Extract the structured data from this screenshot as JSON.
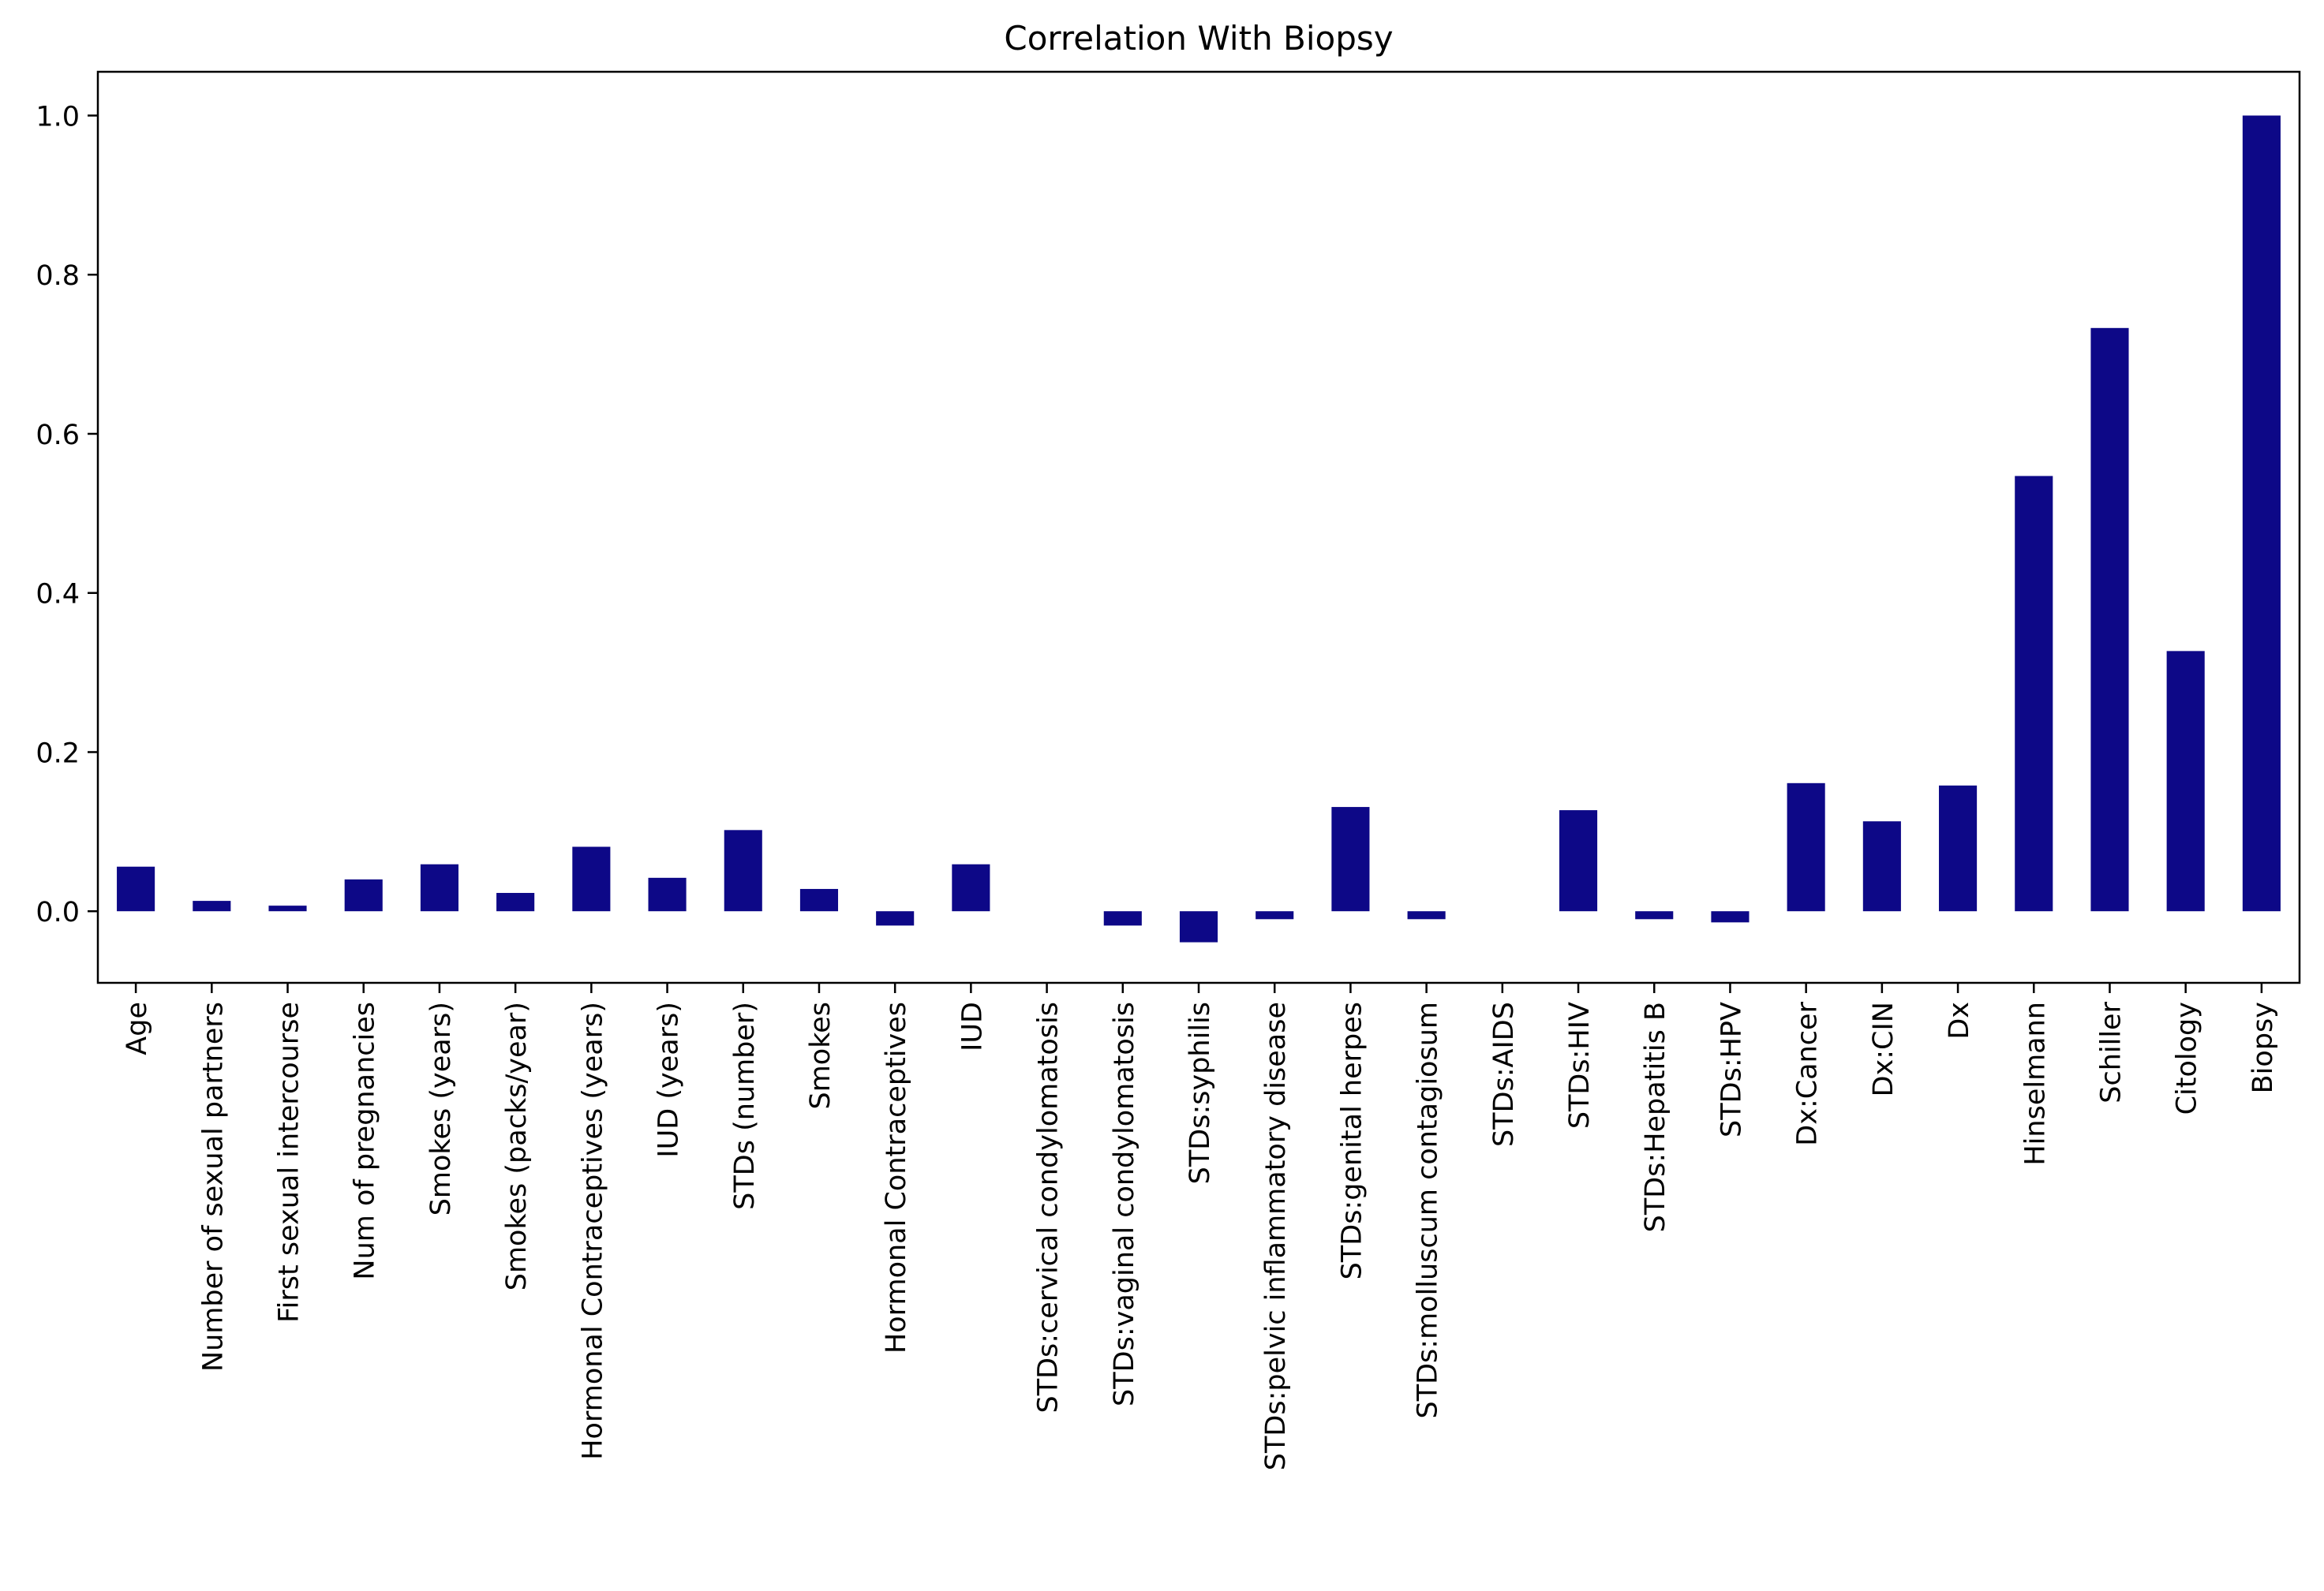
{
  "chart_data": {
    "type": "bar",
    "title": "Correlation With Biopsy",
    "xlabel": "",
    "ylabel": "",
    "ylim": [
      -0.09,
      1.055
    ],
    "yticks": [
      0.0,
      0.2,
      0.4,
      0.6,
      0.8,
      1.0
    ],
    "ytick_labels": [
      "0.0",
      "0.2",
      "0.4",
      "0.6",
      "0.8",
      "1.0"
    ],
    "bar_color": "#0d0887",
    "grid": false,
    "legend": "none",
    "categories": [
      "Age",
      "Number of sexual partners",
      "First sexual intercourse",
      "Num of pregnancies",
      "Smokes (years)",
      "Smokes (packs/year)",
      "Hormonal Contraceptives (years)",
      "IUD (years)",
      "STDs (number)",
      "Smokes",
      "Hormonal Contraceptives",
      "IUD",
      "STDs:cervical condylomatosis",
      "STDs:vaginal condylomatosis",
      "STDs:syphilis",
      "STDs:pelvic inflammatory disease",
      "STDs:genital herpes",
      "STDs:molluscum contagiosum",
      "STDs:AIDS",
      "STDs:HIV",
      "STDs:Hepatitis B",
      "STDs:HPV",
      "Dx:Cancer",
      "Dx:CIN",
      "Dx",
      "Hinselmann",
      "Schiller",
      "Citology",
      "Biopsy"
    ],
    "values": [
      0.056,
      0.013,
      0.007,
      0.04,
      0.059,
      0.023,
      0.081,
      0.042,
      0.102,
      0.028,
      -0.018,
      0.059,
      0.0,
      -0.018,
      -0.039,
      -0.01,
      0.131,
      -0.01,
      0.0,
      0.127,
      -0.01,
      -0.014,
      0.161,
      0.113,
      0.158,
      0.547,
      0.733,
      0.327,
      1.0
    ]
  }
}
